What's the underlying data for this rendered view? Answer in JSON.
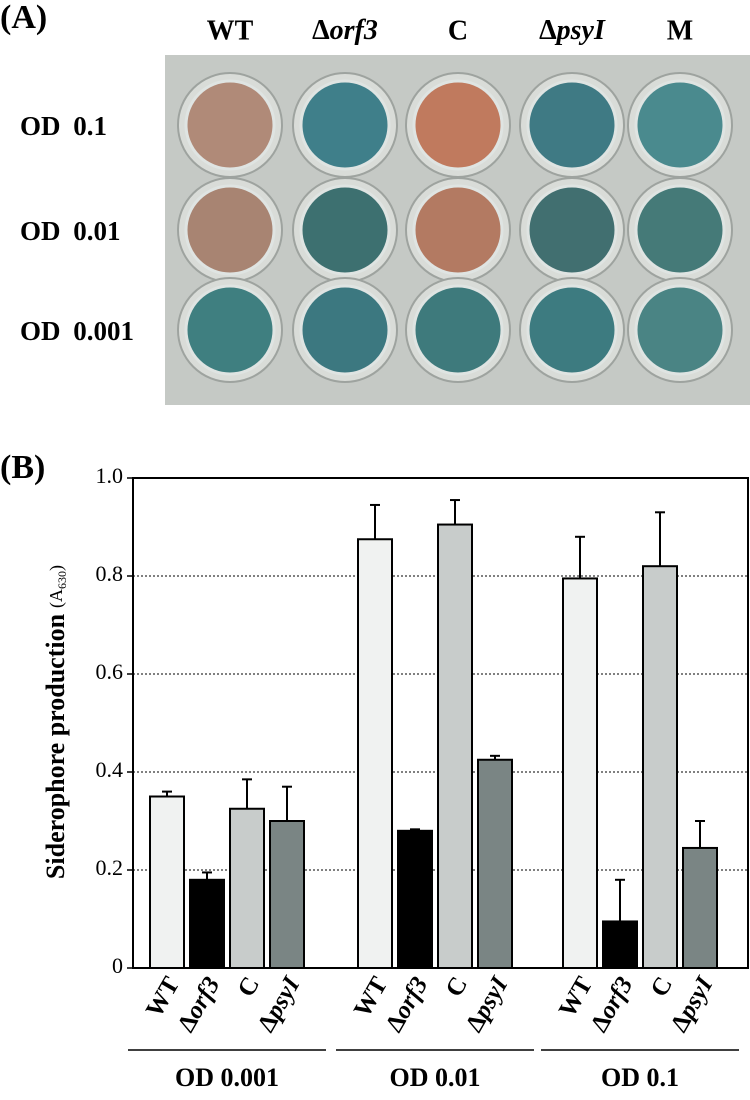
{
  "plate": {
    "panel_label": "(A)",
    "columns": [
      "WT",
      "Δorf3",
      "C",
      "ΔpsyI",
      "M"
    ],
    "rows": [
      "OD 0.1",
      "OD 0.01",
      "OD 0.001"
    ],
    "well_colors": [
      [
        "#b08a78",
        "#3f7f8a",
        "#c07a5e",
        "#3f7a84",
        "#4a8a8e"
      ],
      [
        "#a88472",
        "#3d7070",
        "#b37a62",
        "#416f70",
        "#457a78"
      ],
      [
        "#3f7f80",
        "#3c7880",
        "#3e7a7c",
        "#3d7b80",
        "#4a8484"
      ]
    ]
  },
  "chart_data": {
    "type": "bar",
    "panel_label": "(B)",
    "y_label": "Siderophore production",
    "y_unit": [
      "(A",
      "630",
      ")"
    ],
    "groups": [
      "OD 0.001",
      "OD 0.01",
      "OD 0.1"
    ],
    "series": [
      {
        "name": "WT",
        "color": "#f0f2f1",
        "values": [
          0.35,
          0.875,
          0.795
        ],
        "errors": [
          0.01,
          0.07,
          0.085
        ]
      },
      {
        "name": "Δorf3",
        "color": "#000000",
        "values": [
          0.18,
          0.28,
          0.095
        ],
        "errors": [
          0.015,
          0.003,
          0.085
        ]
      },
      {
        "name": "C",
        "color": "#c8cccb",
        "values": [
          0.325,
          0.905,
          0.82
        ],
        "errors": [
          0.06,
          0.05,
          0.11
        ]
      },
      {
        "name": "ΔpsyI",
        "color": "#7a8584",
        "values": [
          0.3,
          0.425,
          0.245
        ],
        "errors": [
          0.07,
          0.008,
          0.055
        ]
      }
    ],
    "ylim": [
      0,
      1
    ],
    "yticks": [
      0,
      0.2,
      0.4,
      0.6,
      0.8,
      {
        "value": 1,
        "label": "1.0"
      }
    ],
    "grid": true
  }
}
